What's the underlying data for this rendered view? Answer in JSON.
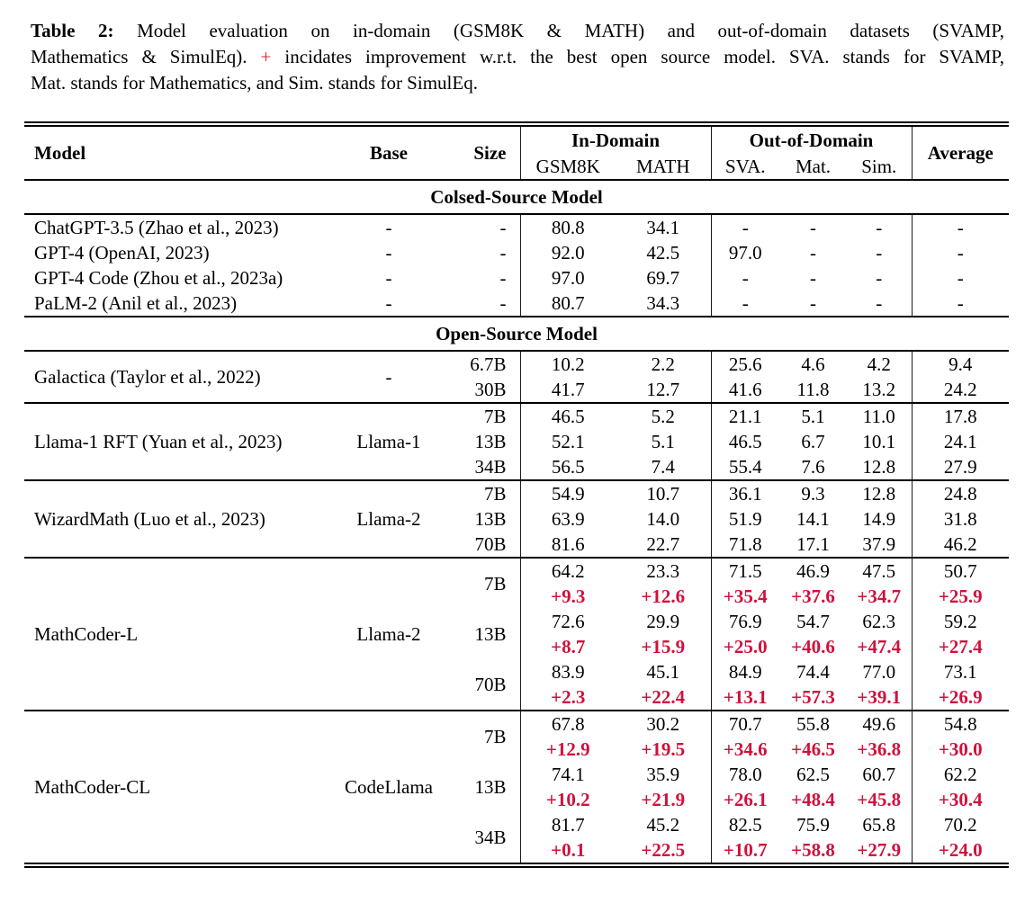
{
  "caption": {
    "label": "Table 2:",
    "line1_rest": "Model evaluation on in-domain (GSM8K & MATH) and out-of-domain datasets (SVAMP,",
    "line2_pre": "Mathematics & SimulEq).",
    "plus_sign": "+",
    "line2_post": "incidates improvement w.r.t. the best open source model. SVA. stands for SVAMP,",
    "line3": "Mat. stands for Mathematics, and Sim. stands for SimulEq."
  },
  "header": {
    "model": "Model",
    "base": "Base",
    "size": "Size",
    "in_domain": "In-Domain",
    "out_of_domain": "Out-of-Domain",
    "average": "Average",
    "sub": [
      "GSM8K",
      "MATH",
      "SVA.",
      "Mat.",
      "Sim."
    ]
  },
  "colors": {
    "delta_red": "#d2103c",
    "caption_plus_red": "#e11e26",
    "text": "#000000",
    "background": "#ffffff"
  },
  "sections": [
    {
      "title": "Colsed-Source Model",
      "divider_between_groups": false,
      "groups": [
        {
          "model": "ChatGPT-3.5 (Zhao et al., 2023)",
          "base": "-",
          "rows": [
            {
              "size": "-",
              "values": [
                "80.8",
                "34.1",
                "-",
                "-",
                "-",
                "-"
              ]
            }
          ]
        },
        {
          "model": "GPT-4 (OpenAI, 2023)",
          "base": "-",
          "rows": [
            {
              "size": "-",
              "values": [
                "92.0",
                "42.5",
                "97.0",
                "-",
                "-",
                "-"
              ]
            }
          ]
        },
        {
          "model": "GPT-4 Code (Zhou et al., 2023a)",
          "base": "-",
          "rows": [
            {
              "size": "-",
              "values": [
                "97.0",
                "69.7",
                "-",
                "-",
                "-",
                "-"
              ]
            }
          ]
        },
        {
          "model": "PaLM-2 (Anil et al., 2023)",
          "base": "-",
          "rows": [
            {
              "size": "-",
              "values": [
                "80.7",
                "34.3",
                "-",
                "-",
                "-",
                "-"
              ]
            }
          ]
        }
      ]
    },
    {
      "title": "Open-Source Model",
      "divider_between_groups": true,
      "groups": [
        {
          "model": "Galactica (Taylor et al., 2022)",
          "base": "-",
          "rows": [
            {
              "size": "6.7B",
              "values": [
                "10.2",
                "2.2",
                "25.6",
                "4.6",
                "4.2",
                "9.4"
              ]
            },
            {
              "size": "30B",
              "values": [
                "41.7",
                "12.7",
                "41.6",
                "11.8",
                "13.2",
                "24.2"
              ]
            }
          ]
        },
        {
          "model": "Llama-1 RFT (Yuan et al., 2023)",
          "base": "Llama-1",
          "rows": [
            {
              "size": "7B",
              "values": [
                "46.5",
                "5.2",
                "21.1",
                "5.1",
                "11.0",
                "17.8"
              ]
            },
            {
              "size": "13B",
              "values": [
                "52.1",
                "5.1",
                "46.5",
                "6.7",
                "10.1",
                "24.1"
              ]
            },
            {
              "size": "34B",
              "values": [
                "56.5",
                "7.4",
                "55.4",
                "7.6",
                "12.8",
                "27.9"
              ]
            }
          ]
        },
        {
          "model": "WizardMath (Luo et al., 2023)",
          "base": "Llama-2",
          "rows": [
            {
              "size": "7B",
              "values": [
                "54.9",
                "10.7",
                "36.1",
                "9.3",
                "12.8",
                "24.8"
              ]
            },
            {
              "size": "13B",
              "values": [
                "63.9",
                "14.0",
                "51.9",
                "14.1",
                "14.9",
                "31.8"
              ]
            },
            {
              "size": "70B",
              "values": [
                "81.6",
                "22.7",
                "71.8",
                "17.1",
                "37.9",
                "46.2"
              ]
            }
          ]
        },
        {
          "model": "MathCoder-L",
          "base": "Llama-2",
          "rows": [
            {
              "size": "7B",
              "values": [
                "64.2",
                "23.3",
                "71.5",
                "46.9",
                "47.5",
                "50.7"
              ],
              "deltas": [
                "+9.3",
                "+12.6",
                "+35.4",
                "+37.6",
                "+34.7",
                "+25.9"
              ]
            },
            {
              "size": "13B",
              "values": [
                "72.6",
                "29.9",
                "76.9",
                "54.7",
                "62.3",
                "59.2"
              ],
              "deltas": [
                "+8.7",
                "+15.9",
                "+25.0",
                "+40.6",
                "+47.4",
                "+27.4"
              ]
            },
            {
              "size": "70B",
              "values": [
                "83.9",
                "45.1",
                "84.9",
                "74.4",
                "77.0",
                "73.1"
              ],
              "deltas": [
                "+2.3",
                "+22.4",
                "+13.1",
                "+57.3",
                "+39.1",
                "+26.9"
              ]
            }
          ]
        },
        {
          "model": "MathCoder-CL",
          "base": "CodeLlama",
          "rows": [
            {
              "size": "7B",
              "values": [
                "67.8",
                "30.2",
                "70.7",
                "55.8",
                "49.6",
                "54.8"
              ],
              "deltas": [
                "+12.9",
                "+19.5",
                "+34.6",
                "+46.5",
                "+36.8",
                "+30.0"
              ]
            },
            {
              "size": "13B",
              "values": [
                "74.1",
                "35.9",
                "78.0",
                "62.5",
                "60.7",
                "62.2"
              ],
              "deltas": [
                "+10.2",
                "+21.9",
                "+26.1",
                "+48.4",
                "+45.8",
                "+30.4"
              ]
            },
            {
              "size": "34B",
              "values": [
                "81.7",
                "45.2",
                "82.5",
                "75.9",
                "65.8",
                "70.2"
              ],
              "deltas": [
                "+0.1",
                "+22.5",
                "+10.7",
                "+58.8",
                "+27.9",
                "+24.0"
              ]
            }
          ]
        }
      ]
    }
  ]
}
